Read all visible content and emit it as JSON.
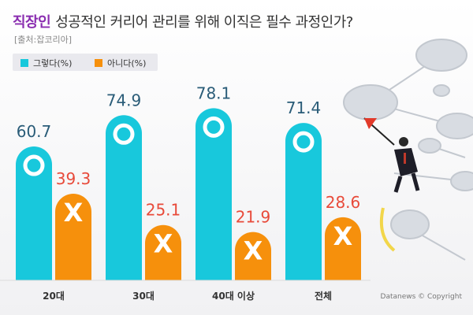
{
  "title": {
    "highlight": "직장인",
    "text": "성공적인 커리어 관리를 위해 이직은 필수 과정인가?"
  },
  "source": "[출처:잡코리아]",
  "credit": "Datanews © Copyright",
  "colors": {
    "yes": "#18c8dc",
    "no": "#f6900c",
    "yes_label": "#2a5c78",
    "no_label": "#e84a3a",
    "title_highlight": "#8a2db0"
  },
  "legend": [
    {
      "name": "그렇다(%)",
      "color": "#18c8dc"
    },
    {
      "name": "아니다(%)",
      "color": "#f6900c"
    }
  ],
  "chart_data": {
    "type": "bar",
    "title": "성공적인 커리어 관리를 위해 이직은 필수 과정인가?",
    "categories": [
      "20대",
      "30대",
      "40대 이상",
      "전체"
    ],
    "series": [
      {
        "name": "그렇다(%)",
        "values": [
          60.7,
          74.9,
          78.1,
          71.4
        ],
        "marker": "O"
      },
      {
        "name": "아니다(%)",
        "values": [
          39.3,
          25.1,
          21.9,
          28.6
        ],
        "marker": "X"
      }
    ],
    "ylim": [
      0,
      100
    ],
    "grid": false,
    "legend_position": "top-left"
  }
}
